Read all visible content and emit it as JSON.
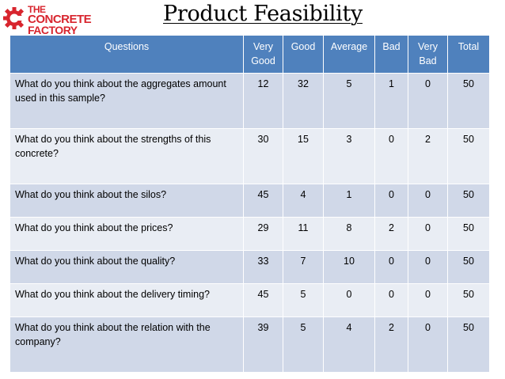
{
  "logo": {
    "line1": "THE",
    "line2": "CONCRETE",
    "line3": "FACTORY",
    "brand_color": "#d8252e"
  },
  "title": "Product Feasibility",
  "colors": {
    "header": "#4f81bd",
    "row_odd": "#d0d8e8",
    "row_even": "#e9edf4"
  },
  "table": {
    "columns": [
      "Questions",
      "Very Good",
      "Good",
      "Average",
      "Bad",
      "Very Bad",
      "Total"
    ],
    "rows": [
      {
        "question": "What do you think about the aggregates amount used in this sample?",
        "values": [
          "12",
          "32",
          "5",
          "1",
          "0",
          "50"
        ]
      },
      {
        "question": "What do you think about the strengths of this concrete?",
        "values": [
          "30",
          "15",
          "3",
          "0",
          "2",
          "50"
        ]
      },
      {
        "question": "What do you think about the silos?",
        "values": [
          "45",
          "4",
          "1",
          "0",
          "0",
          "50"
        ]
      },
      {
        "question": "What do you think about the prices?",
        "values": [
          "29",
          "11",
          "8",
          "2",
          "0",
          "50"
        ]
      },
      {
        "question": "What do you think about the quality?",
        "values": [
          "33",
          "7",
          "10",
          "0",
          "0",
          "50"
        ]
      },
      {
        "question": "What do you think about the delivery timing?",
        "values": [
          "45",
          "5",
          "0",
          "0",
          "0",
          "50"
        ]
      },
      {
        "question": "What do you think about the relation with the company?",
        "values": [
          "39",
          "5",
          "4",
          "2",
          "0",
          "50"
        ]
      }
    ]
  }
}
